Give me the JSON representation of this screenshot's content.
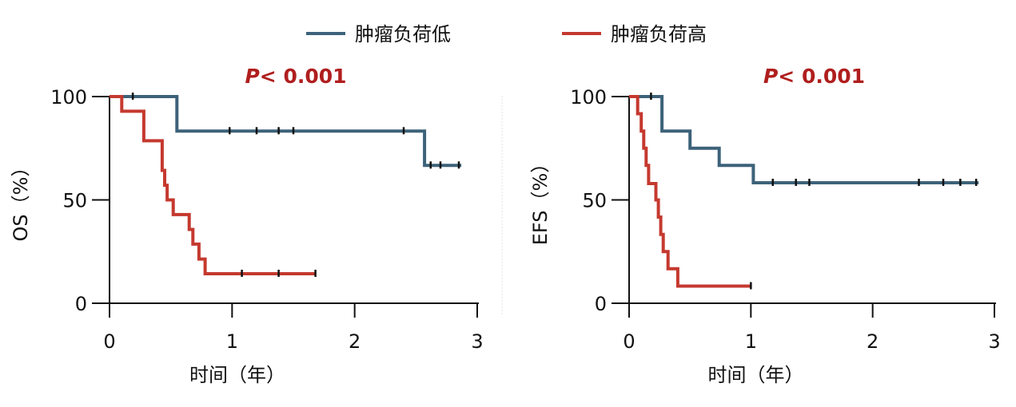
{
  "colors": {
    "low_burden": "#3d627a",
    "high_burden": "#c5392f",
    "pvalue": "#b01e1e",
    "axis": "#111111",
    "divider": "#dddddd"
  },
  "legend": [
    {
      "label": "肿瘤负荷低",
      "color_key": "low_burden"
    },
    {
      "label": "肿瘤负荷高",
      "color_key": "high_burden"
    }
  ],
  "chart_data": [
    {
      "type": "line",
      "subtype": "kaplan-meier",
      "annotation": {
        "p_symbol": "P",
        "p_text": "< 0.001"
      },
      "xlabel": "时间（年）",
      "ylabel": "OS（%）",
      "xlim": [
        0,
        3
      ],
      "ylim": [
        0,
        100
      ],
      "xticks": [
        "0",
        "1",
        "2",
        "3"
      ],
      "yticks": [
        "0",
        "50",
        "100"
      ],
      "grid": false,
      "series": [
        {
          "name": "肿瘤负荷低",
          "color_key": "low_burden",
          "steps": [
            [
              0,
              100
            ],
            [
              0.55,
              100
            ],
            [
              0.55,
              83.3
            ],
            [
              2.57,
              83.3
            ],
            [
              2.57,
              66.7
            ],
            [
              2.87,
              66.7
            ]
          ],
          "censor": [
            [
              0.19,
              100
            ],
            [
              0.98,
              83.3
            ],
            [
              1.2,
              83.3
            ],
            [
              1.38,
              83.3
            ],
            [
              1.5,
              83.3
            ],
            [
              2.4,
              83.3
            ],
            [
              2.62,
              66.7
            ],
            [
              2.7,
              66.7
            ],
            [
              2.85,
              66.7
            ]
          ]
        },
        {
          "name": "肿瘤负荷高",
          "color_key": "high_burden",
          "steps": [
            [
              0,
              100
            ],
            [
              0.1,
              100
            ],
            [
              0.1,
              92.9
            ],
            [
              0.28,
              92.9
            ],
            [
              0.28,
              78.6
            ],
            [
              0.43,
              78.6
            ],
            [
              0.43,
              64.3
            ],
            [
              0.45,
              64.3
            ],
            [
              0.45,
              57.1
            ],
            [
              0.47,
              57.1
            ],
            [
              0.47,
              50
            ],
            [
              0.52,
              50
            ],
            [
              0.52,
              42.9
            ],
            [
              0.65,
              42.9
            ],
            [
              0.65,
              35.7
            ],
            [
              0.68,
              35.7
            ],
            [
              0.68,
              28.6
            ],
            [
              0.73,
              28.6
            ],
            [
              0.73,
              21.4
            ],
            [
              0.78,
              21.4
            ],
            [
              0.78,
              14.3
            ],
            [
              1.68,
              14.3
            ]
          ],
          "censor": [
            [
              1.08,
              14.3
            ],
            [
              1.38,
              14.3
            ],
            [
              1.68,
              14.3
            ]
          ]
        }
      ]
    },
    {
      "type": "line",
      "subtype": "kaplan-meier",
      "annotation": {
        "p_symbol": "P",
        "p_text": "< 0.001"
      },
      "xlabel": "时间（年）",
      "ylabel": "EFS（%）",
      "xlim": [
        0,
        3
      ],
      "ylim": [
        0,
        100
      ],
      "xticks": [
        "0",
        "1",
        "2",
        "3"
      ],
      "yticks": [
        "0",
        "50",
        "100"
      ],
      "grid": false,
      "series": [
        {
          "name": "肿瘤负荷低",
          "color_key": "low_burden",
          "steps": [
            [
              0,
              100
            ],
            [
              0.27,
              100
            ],
            [
              0.27,
              83.3
            ],
            [
              0.5,
              83.3
            ],
            [
              0.5,
              75
            ],
            [
              0.74,
              75
            ],
            [
              0.74,
              66.7
            ],
            [
              1.02,
              66.7
            ],
            [
              1.02,
              58.3
            ],
            [
              2.87,
              58.3
            ]
          ],
          "censor": [
            [
              0.18,
              100
            ],
            [
              1.18,
              58.3
            ],
            [
              1.37,
              58.3
            ],
            [
              1.48,
              58.3
            ],
            [
              2.38,
              58.3
            ],
            [
              2.58,
              58.3
            ],
            [
              2.72,
              58.3
            ],
            [
              2.85,
              58.3
            ]
          ]
        },
        {
          "name": "肿瘤负荷高",
          "color_key": "high_burden",
          "steps": [
            [
              0,
              100
            ],
            [
              0.07,
              100
            ],
            [
              0.07,
              91.7
            ],
            [
              0.1,
              91.7
            ],
            [
              0.1,
              83.3
            ],
            [
              0.12,
              83.3
            ],
            [
              0.12,
              75
            ],
            [
              0.14,
              75
            ],
            [
              0.14,
              66.7
            ],
            [
              0.16,
              66.7
            ],
            [
              0.16,
              57.9
            ],
            [
              0.22,
              57.9
            ],
            [
              0.22,
              50
            ],
            [
              0.24,
              50
            ],
            [
              0.24,
              41.7
            ],
            [
              0.26,
              41.7
            ],
            [
              0.26,
              33.3
            ],
            [
              0.28,
              33.3
            ],
            [
              0.28,
              25
            ],
            [
              0.32,
              25
            ],
            [
              0.32,
              16.7
            ],
            [
              0.4,
              16.7
            ],
            [
              0.4,
              8.3
            ],
            [
              1.0,
              8.3
            ]
          ],
          "censor": [
            [
              1.0,
              8.3
            ]
          ]
        }
      ]
    }
  ]
}
